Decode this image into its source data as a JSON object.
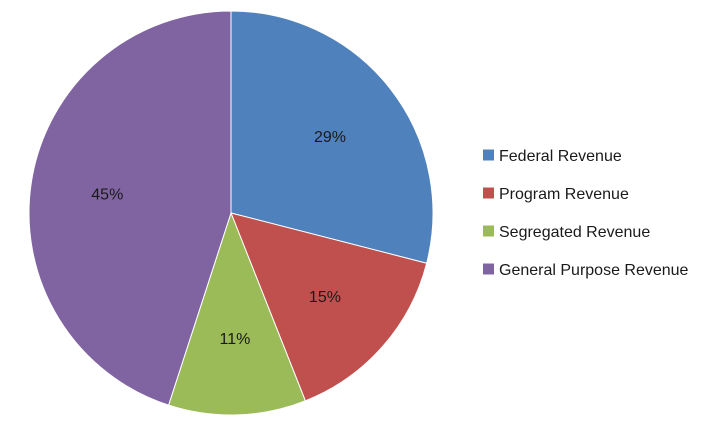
{
  "chart_data": {
    "type": "pie",
    "title": "",
    "slices": [
      {
        "name": "Federal Revenue",
        "value": 29,
        "label": "29%",
        "color": "#4F81BD"
      },
      {
        "name": "Program Revenue",
        "value": 15,
        "label": "15%",
        "color": "#C0504D"
      },
      {
        "name": "Segregated Revenue",
        "value": 11,
        "label": "11%",
        "color": "#9BBB59"
      },
      {
        "name": "General Purpose Revenue",
        "value": 45,
        "label": "45%",
        "color": "#8064A2"
      }
    ],
    "start_angle_deg": 0,
    "direction": "clockwise",
    "legend_position": "right"
  }
}
